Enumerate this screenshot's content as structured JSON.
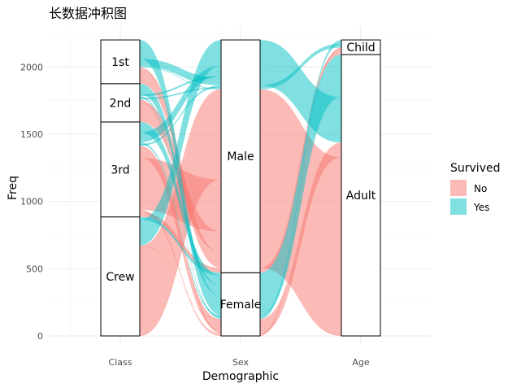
{
  "chart_data": {
    "type": "alluvial",
    "title": "长数据冲积图",
    "xlabel": "Demographic",
    "ylabel": "Freq",
    "axes": [
      "Class",
      "Sex",
      "Age"
    ],
    "yticks": [
      0,
      500,
      1000,
      1500,
      2000
    ],
    "ylim": [
      0,
      2201
    ],
    "strata": {
      "Class": [
        {
          "label": "Crew",
          "value": 885
        },
        {
          "label": "3rd",
          "value": 706
        },
        {
          "label": "2nd",
          "value": 285
        },
        {
          "label": "1st",
          "value": 325
        }
      ],
      "Sex": [
        {
          "label": "Female",
          "value": 470
        },
        {
          "label": "Male",
          "value": 1731
        }
      ],
      "Age": [
        {
          "label": "Adult",
          "value": 2092
        },
        {
          "label": "Child",
          "value": 109
        }
      ]
    },
    "flows": [
      {
        "Class": "1st",
        "Sex": "Male",
        "Age": "Child",
        "Survived": "No",
        "Freq": 0
      },
      {
        "Class": "2nd",
        "Sex": "Male",
        "Age": "Child",
        "Survived": "No",
        "Freq": 0
      },
      {
        "Class": "3rd",
        "Sex": "Male",
        "Age": "Child",
        "Survived": "No",
        "Freq": 35
      },
      {
        "Class": "Crew",
        "Sex": "Male",
        "Age": "Child",
        "Survived": "No",
        "Freq": 0
      },
      {
        "Class": "1st",
        "Sex": "Female",
        "Age": "Child",
        "Survived": "No",
        "Freq": 0
      },
      {
        "Class": "2nd",
        "Sex": "Female",
        "Age": "Child",
        "Survived": "No",
        "Freq": 0
      },
      {
        "Class": "3rd",
        "Sex": "Female",
        "Age": "Child",
        "Survived": "No",
        "Freq": 17
      },
      {
        "Class": "Crew",
        "Sex": "Female",
        "Age": "Child",
        "Survived": "No",
        "Freq": 0
      },
      {
        "Class": "1st",
        "Sex": "Male",
        "Age": "Adult",
        "Survived": "No",
        "Freq": 118
      },
      {
        "Class": "2nd",
        "Sex": "Male",
        "Age": "Adult",
        "Survived": "No",
        "Freq": 154
      },
      {
        "Class": "3rd",
        "Sex": "Male",
        "Age": "Adult",
        "Survived": "No",
        "Freq": 387
      },
      {
        "Class": "Crew",
        "Sex": "Male",
        "Age": "Adult",
        "Survived": "No",
        "Freq": 670
      },
      {
        "Class": "1st",
        "Sex": "Female",
        "Age": "Adult",
        "Survived": "No",
        "Freq": 4
      },
      {
        "Class": "2nd",
        "Sex": "Female",
        "Age": "Adult",
        "Survived": "No",
        "Freq": 13
      },
      {
        "Class": "3rd",
        "Sex": "Female",
        "Age": "Adult",
        "Survived": "No",
        "Freq": 89
      },
      {
        "Class": "Crew",
        "Sex": "Female",
        "Age": "Adult",
        "Survived": "No",
        "Freq": 3
      },
      {
        "Class": "1st",
        "Sex": "Male",
        "Age": "Child",
        "Survived": "Yes",
        "Freq": 5
      },
      {
        "Class": "2nd",
        "Sex": "Male",
        "Age": "Child",
        "Survived": "Yes",
        "Freq": 11
      },
      {
        "Class": "3rd",
        "Sex": "Male",
        "Age": "Child",
        "Survived": "Yes",
        "Freq": 13
      },
      {
        "Class": "Crew",
        "Sex": "Male",
        "Age": "Child",
        "Survived": "Yes",
        "Freq": 0
      },
      {
        "Class": "1st",
        "Sex": "Female",
        "Age": "Child",
        "Survived": "Yes",
        "Freq": 1
      },
      {
        "Class": "2nd",
        "Sex": "Female",
        "Age": "Child",
        "Survived": "Yes",
        "Freq": 13
      },
      {
        "Class": "3rd",
        "Sex": "Female",
        "Age": "Child",
        "Survived": "Yes",
        "Freq": 14
      },
      {
        "Class": "Crew",
        "Sex": "Female",
        "Age": "Child",
        "Survived": "Yes",
        "Freq": 0
      },
      {
        "Class": "1st",
        "Sex": "Male",
        "Age": "Adult",
        "Survived": "Yes",
        "Freq": 57
      },
      {
        "Class": "2nd",
        "Sex": "Male",
        "Age": "Adult",
        "Survived": "Yes",
        "Freq": 14
      },
      {
        "Class": "3rd",
        "Sex": "Male",
        "Age": "Adult",
        "Survived": "Yes",
        "Freq": 75
      },
      {
        "Class": "Crew",
        "Sex": "Male",
        "Age": "Adult",
        "Survived": "Yes",
        "Freq": 192
      },
      {
        "Class": "1st",
        "Sex": "Female",
        "Age": "Adult",
        "Survived": "Yes",
        "Freq": 140
      },
      {
        "Class": "2nd",
        "Sex": "Female",
        "Age": "Adult",
        "Survived": "Yes",
        "Freq": 80
      },
      {
        "Class": "3rd",
        "Sex": "Female",
        "Age": "Adult",
        "Survived": "Yes",
        "Freq": 76
      },
      {
        "Class": "Crew",
        "Sex": "Female",
        "Age": "Adult",
        "Survived": "Yes",
        "Freq": 20
      }
    ],
    "legend": {
      "title": "Survived",
      "position": "right",
      "entries": [
        {
          "label": "No",
          "color": "#F8766D"
        },
        {
          "label": "Yes",
          "color": "#00BFC4"
        }
      ]
    },
    "fill_opacity": 0.5,
    "grid": true
  }
}
